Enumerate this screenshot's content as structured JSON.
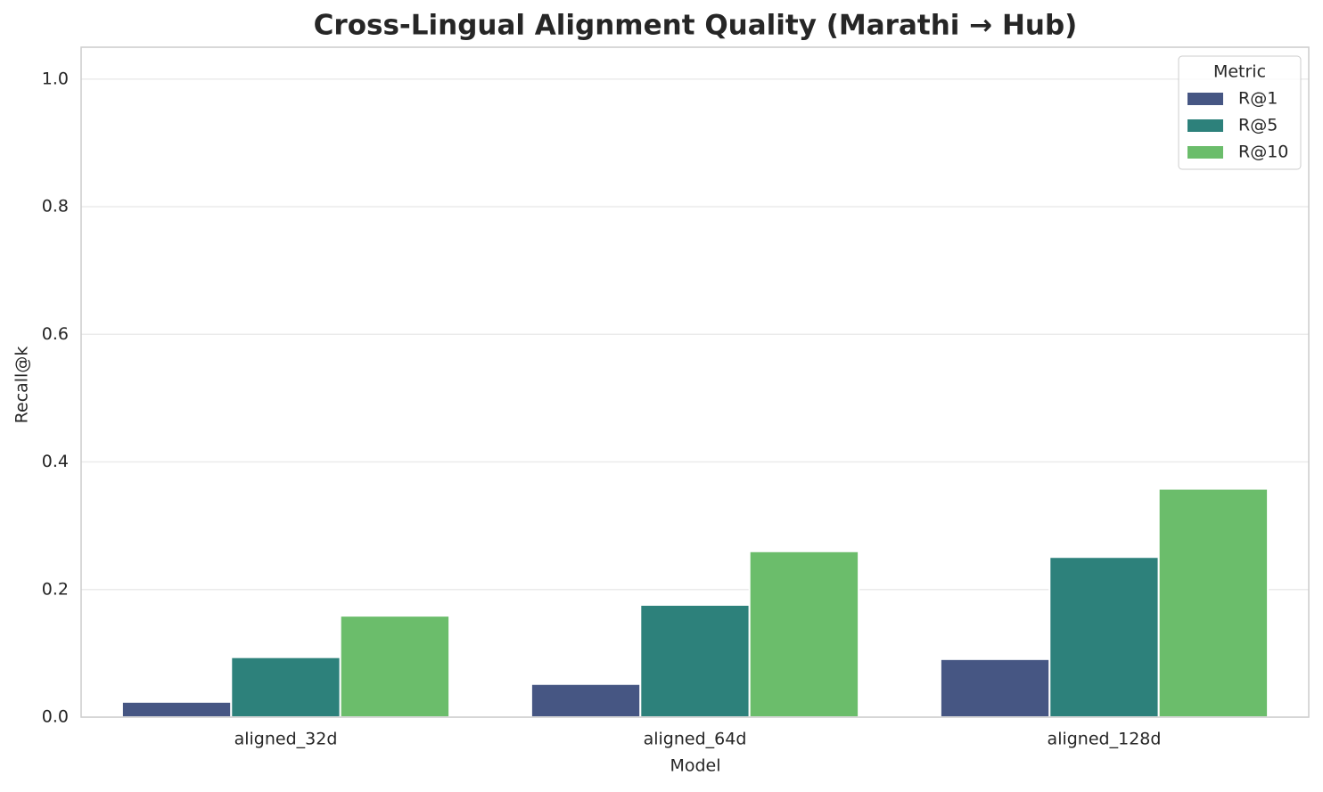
{
  "chart_data": {
    "type": "bar",
    "title": "Cross-Lingual Alignment Quality (Marathi → Hub)",
    "x_label": "Model",
    "y_label": "Recall@k",
    "categories": [
      "aligned_32d",
      "aligned_64d",
      "aligned_128d"
    ],
    "legend_title": "Metric",
    "legend_position": "upper right",
    "series": [
      {
        "name": "R@1",
        "color": "#465683",
        "values": [
          0.024,
          0.052,
          0.091
        ]
      },
      {
        "name": "R@5",
        "color": "#2d817b",
        "values": [
          0.094,
          0.176,
          0.251
        ]
      },
      {
        "name": "R@10",
        "color": "#6bbd6b",
        "values": [
          0.159,
          0.26,
          0.358
        ]
      }
    ],
    "ylim": [
      0,
      1.05
    ],
    "yticks": [
      {
        "value": 0,
        "label": "0.0"
      },
      {
        "value": 0.2,
        "label": "0.2"
      },
      {
        "value": 0.4,
        "label": "0.4"
      },
      {
        "value": 0.6,
        "label": "0.6"
      },
      {
        "value": 0.8,
        "label": "0.8"
      },
      {
        "value": 1,
        "label": "1.0"
      }
    ],
    "grid": true
  }
}
